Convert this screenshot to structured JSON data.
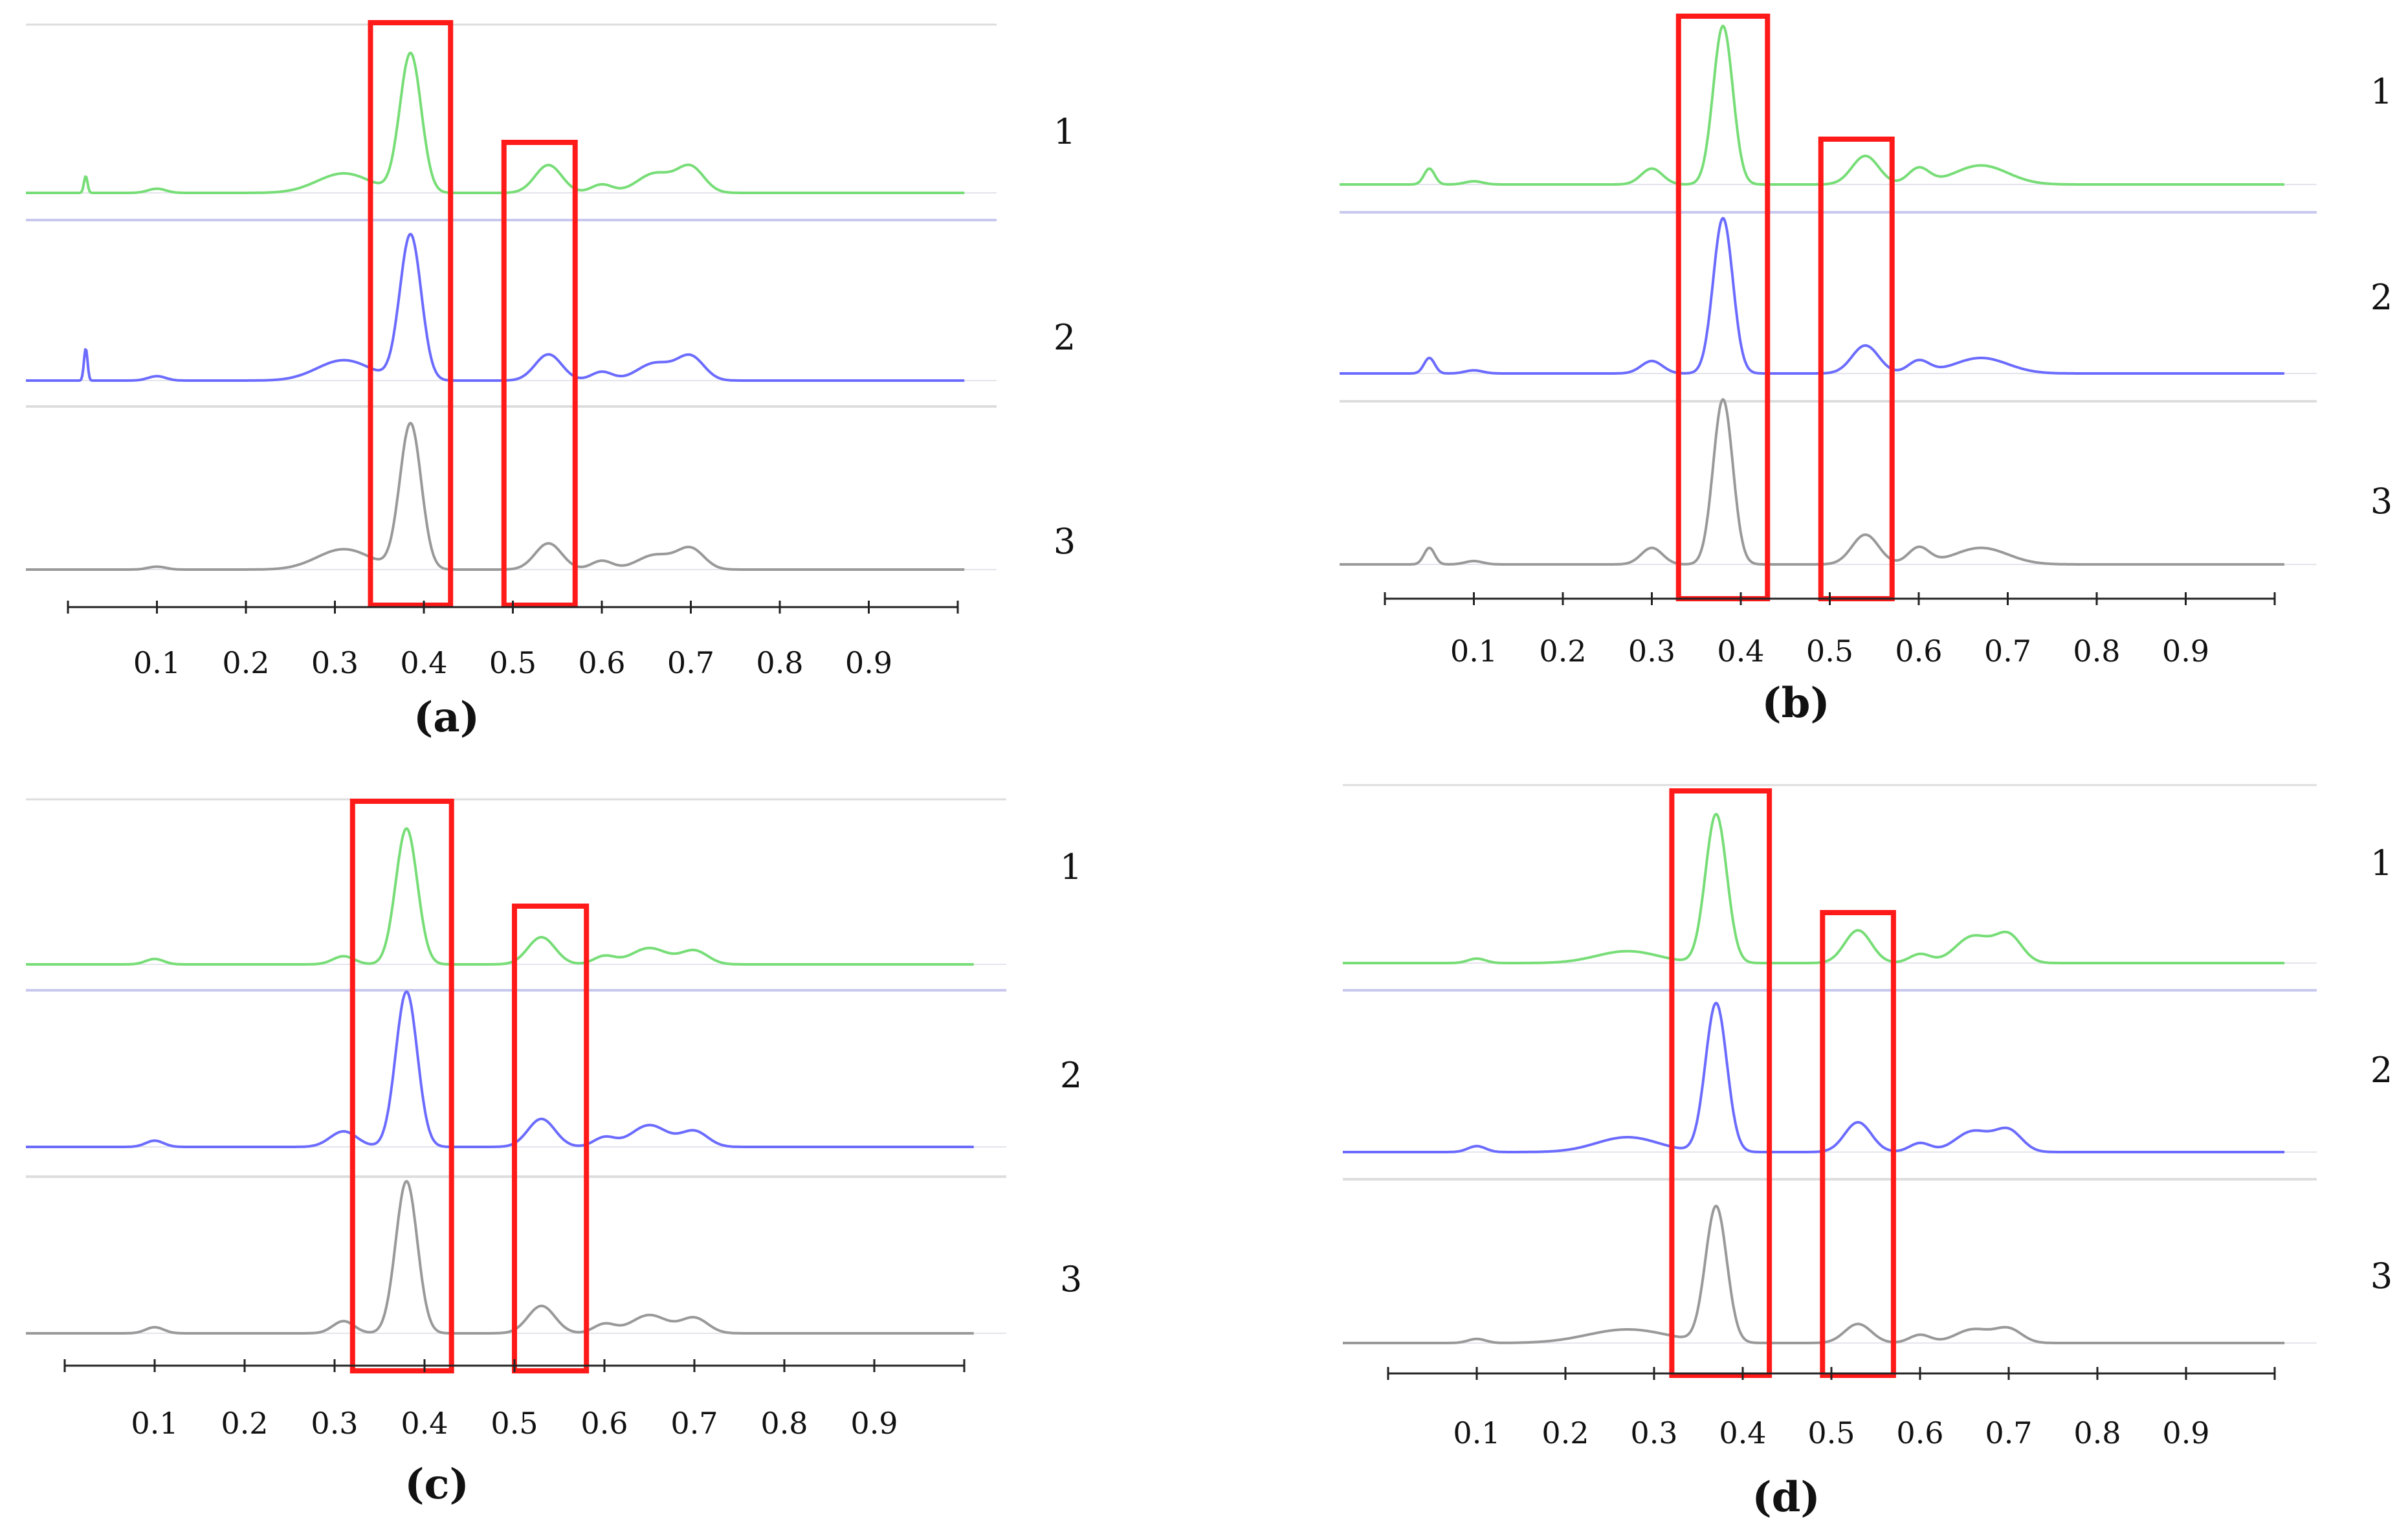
{
  "figure": {
    "description_panels": [
      "(a)",
      "(b)",
      "(c)",
      "(d)"
    ]
  },
  "colors": {
    "track_1": "#77dd77",
    "track_2": "#6b6bff",
    "track_3": "#999999",
    "track_3_peak": "#c28a8a",
    "highlight_box": "#ff1a1a",
    "baseline_line": "#d8d8e8",
    "axis": "#222222"
  },
  "chart_data": [
    {
      "type": "line",
      "panel": "(a)",
      "caption": "(a)",
      "x_ticks": [
        "0.1",
        "0.2",
        "0.3",
        "0.4",
        "0.5",
        "0.6",
        "0.7",
        "0.8",
        "0.9"
      ],
      "xlim": [
        0.0,
        1.0
      ],
      "highlight_ranges": [
        [
          0.34,
          0.43
        ],
        [
          0.49,
          0.57
        ]
      ],
      "series": [
        {
          "name": "1",
          "color": "#77dd77",
          "peaks": [
            [
              0.02,
              0.12,
              0.002
            ],
            [
              0.1,
              0.03,
              0.01
            ],
            [
              0.31,
              0.14,
              0.03
            ],
            [
              0.385,
              1.0,
              0.012
            ],
            [
              0.54,
              0.2,
              0.015
            ],
            [
              0.6,
              0.06,
              0.012
            ],
            [
              0.66,
              0.14,
              0.02
            ],
            [
              0.7,
              0.18,
              0.015
            ]
          ]
        },
        {
          "name": "2",
          "color": "#6b6bff",
          "peaks": [
            [
              0.02,
              0.22,
              0.002
            ],
            [
              0.1,
              0.03,
              0.01
            ],
            [
              0.31,
              0.14,
              0.03
            ],
            [
              0.385,
              1.0,
              0.012
            ],
            [
              0.54,
              0.18,
              0.015
            ],
            [
              0.6,
              0.06,
              0.012
            ],
            [
              0.66,
              0.12,
              0.02
            ],
            [
              0.7,
              0.16,
              0.015
            ]
          ]
        },
        {
          "name": "3",
          "color": "#999999",
          "peaks": [
            [
              0.1,
              0.02,
              0.01
            ],
            [
              0.31,
              0.14,
              0.03
            ],
            [
              0.385,
              1.0,
              0.012
            ],
            [
              0.54,
              0.18,
              0.015
            ],
            [
              0.6,
              0.06,
              0.012
            ],
            [
              0.66,
              0.1,
              0.02
            ],
            [
              0.7,
              0.14,
              0.015
            ]
          ]
        }
      ]
    },
    {
      "type": "line",
      "panel": "(b)",
      "caption": "(b)",
      "x_ticks": [
        "0.1",
        "0.2",
        "0.3",
        "0.4",
        "0.5",
        "0.6",
        "0.7",
        "0.8",
        "0.9"
      ],
      "xlim": [
        0.0,
        1.0
      ],
      "highlight_ranges": [
        [
          0.33,
          0.43
        ],
        [
          0.49,
          0.57
        ]
      ],
      "series": [
        {
          "name": "1",
          "color": "#77dd77",
          "peaks": [
            [
              0.05,
              0.1,
              0.006
            ],
            [
              0.1,
              0.02,
              0.01
            ],
            [
              0.3,
              0.1,
              0.012
            ],
            [
              0.38,
              1.0,
              0.011
            ],
            [
              0.54,
              0.18,
              0.015
            ],
            [
              0.6,
              0.1,
              0.012
            ],
            [
              0.67,
              0.12,
              0.03
            ]
          ]
        },
        {
          "name": "2",
          "color": "#6b6bff",
          "peaks": [
            [
              0.05,
              0.1,
              0.006
            ],
            [
              0.1,
              0.02,
              0.01
            ],
            [
              0.3,
              0.08,
              0.012
            ],
            [
              0.38,
              1.0,
              0.011
            ],
            [
              0.54,
              0.18,
              0.015
            ],
            [
              0.6,
              0.08,
              0.012
            ],
            [
              0.67,
              0.1,
              0.03
            ]
          ]
        },
        {
          "name": "3",
          "color": "#999999",
          "peaks": [
            [
              0.05,
              0.1,
              0.006
            ],
            [
              0.1,
              0.02,
              0.01
            ],
            [
              0.3,
              0.1,
              0.012
            ],
            [
              0.38,
              1.0,
              0.011
            ],
            [
              0.54,
              0.18,
              0.015
            ],
            [
              0.6,
              0.1,
              0.012
            ],
            [
              0.67,
              0.1,
              0.03
            ]
          ]
        }
      ]
    },
    {
      "type": "line",
      "panel": "(c)",
      "caption": "(c)",
      "x_ticks": [
        "0.1",
        "0.2",
        "0.3",
        "0.4",
        "0.5",
        "0.6",
        "0.7",
        "0.8",
        "0.9"
      ],
      "xlim": [
        0.0,
        1.0
      ],
      "highlight_ranges": [
        [
          0.32,
          0.43
        ],
        [
          0.5,
          0.58
        ]
      ],
      "series": [
        {
          "name": "1",
          "color": "#77dd77",
          "peaks": [
            [
              0.1,
              0.04,
              0.01
            ],
            [
              0.31,
              0.06,
              0.012
            ],
            [
              0.38,
              1.0,
              0.012
            ],
            [
              0.53,
              0.2,
              0.015
            ],
            [
              0.6,
              0.06,
              0.012
            ],
            [
              0.65,
              0.12,
              0.02
            ],
            [
              0.7,
              0.1,
              0.015
            ]
          ]
        },
        {
          "name": "2",
          "color": "#6b6bff",
          "peaks": [
            [
              0.1,
              0.04,
              0.01
            ],
            [
              0.31,
              0.1,
              0.015
            ],
            [
              0.38,
              1.0,
              0.012
            ],
            [
              0.53,
              0.18,
              0.015
            ],
            [
              0.6,
              0.06,
              0.012
            ],
            [
              0.65,
              0.14,
              0.02
            ],
            [
              0.7,
              0.1,
              0.015
            ]
          ]
        },
        {
          "name": "3",
          "color": "#999999",
          "peaks": [
            [
              0.1,
              0.04,
              0.01
            ],
            [
              0.31,
              0.08,
              0.012
            ],
            [
              0.38,
              1.0,
              0.012
            ],
            [
              0.53,
              0.18,
              0.015
            ],
            [
              0.6,
              0.06,
              0.012
            ],
            [
              0.65,
              0.12,
              0.02
            ],
            [
              0.7,
              0.1,
              0.015
            ]
          ]
        }
      ]
    },
    {
      "type": "line",
      "panel": "(d)",
      "caption": "(d)",
      "x_ticks": [
        "0.1",
        "0.2",
        "0.3",
        "0.4",
        "0.5",
        "0.6",
        "0.7",
        "0.8",
        "0.9"
      ],
      "xlim": [
        0.0,
        1.0
      ],
      "highlight_ranges": [
        [
          0.32,
          0.43
        ],
        [
          0.49,
          0.57
        ]
      ],
      "series": [
        {
          "name": "1",
          "color": "#77dd77",
          "peaks": [
            [
              0.1,
              0.03,
              0.01
            ],
            [
              0.27,
              0.08,
              0.035
            ],
            [
              0.37,
              1.0,
              0.012
            ],
            [
              0.53,
              0.22,
              0.015
            ],
            [
              0.6,
              0.06,
              0.012
            ],
            [
              0.66,
              0.18,
              0.02
            ],
            [
              0.7,
              0.18,
              0.015
            ]
          ]
        },
        {
          "name": "2",
          "color": "#6b6bff",
          "peaks": [
            [
              0.1,
              0.04,
              0.01
            ],
            [
              0.27,
              0.1,
              0.035
            ],
            [
              0.37,
              1.0,
              0.012
            ],
            [
              0.53,
              0.2,
              0.015
            ],
            [
              0.6,
              0.06,
              0.012
            ],
            [
              0.66,
              0.14,
              0.02
            ],
            [
              0.7,
              0.14,
              0.015
            ]
          ]
        },
        {
          "name": "3",
          "color": "#999999",
          "peaks": [
            [
              0.1,
              0.03,
              0.01
            ],
            [
              0.27,
              0.1,
              0.045
            ],
            [
              0.37,
              1.0,
              0.012
            ],
            [
              0.53,
              0.14,
              0.015
            ],
            [
              0.6,
              0.06,
              0.012
            ],
            [
              0.66,
              0.1,
              0.02
            ],
            [
              0.7,
              0.1,
              0.015
            ]
          ]
        }
      ]
    }
  ]
}
